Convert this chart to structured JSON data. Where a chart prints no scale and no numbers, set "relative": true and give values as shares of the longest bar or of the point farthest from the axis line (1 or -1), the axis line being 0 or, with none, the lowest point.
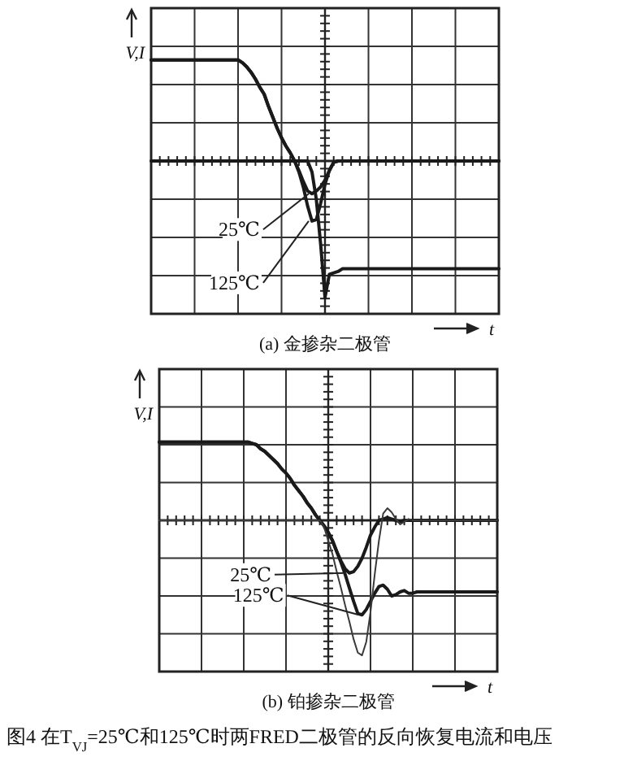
{
  "chart_data": [
    {
      "type": "line",
      "title": "(a) 金掺杂二极管",
      "xlabel": "t",
      "ylabel": "V,I",
      "relative": true,
      "grid": true,
      "categories": [
        null,
        null,
        null,
        null,
        null,
        null,
        null,
        null,
        null,
        null,
        null,
        null,
        null,
        null,
        null,
        null,
        null,
        null,
        null,
        null,
        null,
        null,
        null,
        null,
        null,
        null,
        null,
        null,
        null,
        null,
        null,
        null,
        null,
        null,
        null,
        null,
        null,
        null,
        null,
        null,
        null,
        null,
        null,
        null,
        null,
        null,
        null,
        null,
        null,
        null,
        null,
        null,
        null,
        null,
        null,
        null,
        null,
        null,
        null,
        null,
        null,
        null,
        null,
        null,
        null,
        null,
        null,
        null,
        null,
        null,
        null,
        null,
        null,
        null,
        null,
        null,
        null,
        null,
        null,
        null,
        null
      ],
      "series": [
        {
          "color": "#1a1a1a",
          "values": [
            0.74,
            0.74,
            0.74,
            0.74,
            0.74,
            0.74,
            0.74,
            0.74,
            0.74,
            0.74,
            0.74,
            0.74,
            0.74,
            0.74,
            0.74,
            0.74,
            0.74,
            0.74,
            0.74,
            0.74,
            0.74,
            0.72,
            0.69,
            0.65,
            0.6,
            0.54,
            0.49,
            0.4,
            0.32,
            0.24,
            0.17,
            0.11,
            0.06,
            0,
            -0.07,
            -0.15,
            -0.22,
            -0.24,
            -0.22,
            -0.19,
            -0.14,
            -0.07,
            -0.01,
            0,
            0,
            0,
            0,
            0,
            0,
            0,
            0,
            0,
            0,
            0,
            0,
            0,
            0,
            0,
            0,
            0,
            0,
            0,
            0,
            0,
            0,
            0,
            0,
            0,
            0,
            0,
            0,
            0,
            0,
            0,
            0,
            0,
            0,
            0,
            0,
            0,
            0
          ]
        },
        {
          "color": "#1a1a1a",
          "values": [
            0.74,
            0.74,
            0.74,
            0.74,
            0.74,
            0.74,
            0.74,
            0.74,
            0.74,
            0.74,
            0.74,
            0.74,
            0.74,
            0.74,
            0.74,
            0.74,
            0.74,
            0.74,
            0.74,
            0.74,
            0.74,
            0.72,
            0.69,
            0.65,
            0.6,
            0.54,
            0.49,
            0.4,
            0.32,
            0.24,
            0.17,
            0.11,
            0.06,
            0,
            -0.08,
            -0.19,
            -0.33,
            -0.44,
            -0.43,
            -0.31,
            -0.17,
            -0.07,
            -0.01,
            0,
            0,
            0,
            0,
            0,
            0,
            0,
            0,
            0,
            0,
            0,
            0,
            0,
            0,
            0,
            0,
            0,
            0,
            0,
            0,
            0,
            0,
            0,
            0,
            0,
            0,
            0,
            0,
            0,
            0,
            0,
            0,
            0,
            0,
            0,
            0,
            0,
            0
          ]
        },
        {
          "color": "#1a1a1a",
          "values": [
            0,
            0,
            0,
            0,
            0,
            0,
            0,
            0,
            0,
            0,
            0,
            0,
            0,
            0,
            0,
            0,
            0,
            0,
            0,
            0,
            0,
            0,
            0,
            0,
            0,
            0,
            0,
            0,
            0,
            0,
            0,
            0,
            0,
            0,
            0,
            0,
            0,
            -0.08,
            -0.28,
            -0.61,
            -1,
            -0.83,
            -0.82,
            -0.81,
            -0.79,
            -0.79,
            -0.79,
            -0.79,
            -0.79,
            -0.79,
            -0.79,
            -0.79,
            -0.79,
            -0.79,
            -0.79,
            -0.79,
            -0.79,
            -0.79,
            -0.79,
            -0.79,
            -0.79,
            -0.79,
            -0.79,
            -0.79,
            -0.79,
            -0.79,
            -0.79,
            -0.79,
            -0.79,
            -0.79,
            -0.79,
            -0.79,
            -0.79,
            -0.79,
            -0.79,
            -0.79,
            -0.79,
            -0.79,
            -0.79,
            -0.79,
            -0.79
          ]
        }
      ],
      "annotations": [
        "25℃",
        "125℃"
      ]
    },
    {
      "type": "line",
      "title": "(b) 铂掺杂二极管",
      "xlabel": "t",
      "ylabel": "V,I",
      "relative": true,
      "grid": true,
      "categories": [
        null,
        null,
        null,
        null,
        null,
        null,
        null,
        null,
        null,
        null,
        null,
        null,
        null,
        null,
        null,
        null,
        null,
        null,
        null,
        null,
        null,
        null,
        null,
        null,
        null,
        null,
        null,
        null,
        null,
        null,
        null,
        null,
        null,
        null,
        null,
        null,
        null,
        null,
        null,
        null,
        null,
        null,
        null,
        null,
        null,
        null,
        null,
        null,
        null,
        null,
        null,
        null,
        null,
        null,
        null,
        null,
        null,
        null,
        null,
        null,
        null,
        null,
        null,
        null,
        null,
        null,
        null,
        null,
        null,
        null,
        null,
        null,
        null,
        null,
        null,
        null,
        null,
        null,
        null,
        null,
        null
      ],
      "series": [
        {
          "color": "#1a1a1a",
          "values": [
            0.58,
            0.58,
            0.58,
            0.58,
            0.58,
            0.58,
            0.58,
            0.58,
            0.58,
            0.58,
            0.58,
            0.58,
            0.58,
            0.58,
            0.58,
            0.58,
            0.58,
            0.58,
            0.58,
            0.58,
            0.58,
            0.58,
            0.57,
            0.56,
            0.53,
            0.51,
            0.48,
            0.45,
            0.42,
            0.38,
            0.35,
            0.31,
            0.26,
            0.22,
            0.18,
            0.13,
            0.09,
            0.04,
            0,
            -0.04,
            -0.09,
            -0.15,
            -0.23,
            -0.3,
            -0.36,
            -0.39,
            -0.38,
            -0.34,
            -0.28,
            -0.2,
            -0.11,
            -0.05,
            0,
            0.01,
            0.02,
            0.01,
            0,
            -0.01,
            0,
            0,
            0,
            0,
            0,
            0,
            0,
            0,
            0,
            0,
            0,
            0,
            0,
            0,
            0,
            0,
            0,
            0,
            0,
            0,
            0,
            0,
            0
          ]
        },
        {
          "color": "#1a1a1a",
          "values": [
            0.58,
            0.58,
            0.58,
            0.58,
            0.58,
            0.58,
            0.58,
            0.58,
            0.58,
            0.58,
            0.58,
            0.58,
            0.58,
            0.58,
            0.58,
            0.58,
            0.58,
            0.58,
            0.58,
            0.58,
            0.58,
            0.58,
            0.57,
            0.56,
            0.53,
            0.51,
            0.48,
            0.45,
            0.42,
            0.38,
            0.35,
            0.31,
            0.26,
            0.22,
            0.18,
            0.13,
            0.09,
            0.04,
            0,
            -0.04,
            -0.09,
            -0.15,
            -0.23,
            -0.31,
            -0.4,
            -0.5,
            -0.6,
            -0.69,
            -0.7,
            -0.66,
            -0.6,
            -0.54,
            -0.49,
            -0.48,
            -0.51,
            -0.56,
            -0.55,
            -0.53,
            -0.52,
            -0.54,
            -0.54,
            -0.53,
            -0.53,
            -0.53,
            -0.53,
            -0.53,
            -0.53,
            -0.53,
            -0.53,
            -0.53,
            -0.53,
            -0.53,
            -0.53,
            -0.53,
            -0.53,
            -0.53,
            -0.53,
            -0.53,
            -0.53,
            -0.53,
            -0.53
          ]
        },
        {
          "color": "#3a3a3a",
          "values": [
            0,
            0,
            0,
            0,
            0,
            0,
            0,
            0,
            0,
            0,
            0,
            0,
            0,
            0,
            0,
            0,
            0,
            0,
            0,
            0,
            0,
            0,
            0,
            0,
            0,
            0,
            0,
            0,
            0,
            0,
            0,
            0,
            0,
            0,
            0,
            0,
            0,
            0,
            0,
            -0.05,
            -0.15,
            -0.25,
            -0.38,
            -0.5,
            -0.63,
            -0.75,
            -0.88,
            -0.98,
            -1,
            -0.9,
            -0.68,
            -0.4,
            -0.15,
            0.05,
            0.09,
            0.06,
            0.01,
            -0.03,
            -0.01,
            0.01,
            0,
            0,
            0,
            0,
            0,
            0,
            0,
            0,
            0,
            0,
            0,
            0,
            0,
            0,
            0,
            0,
            0,
            0,
            0,
            0,
            0
          ]
        }
      ],
      "annotations": [
        "25℃",
        "125℃",
        "图4 在T$_{VJ}$=25℃和125℃时两FRED二极管的反向恢复电流和电压"
      ]
    }
  ]
}
